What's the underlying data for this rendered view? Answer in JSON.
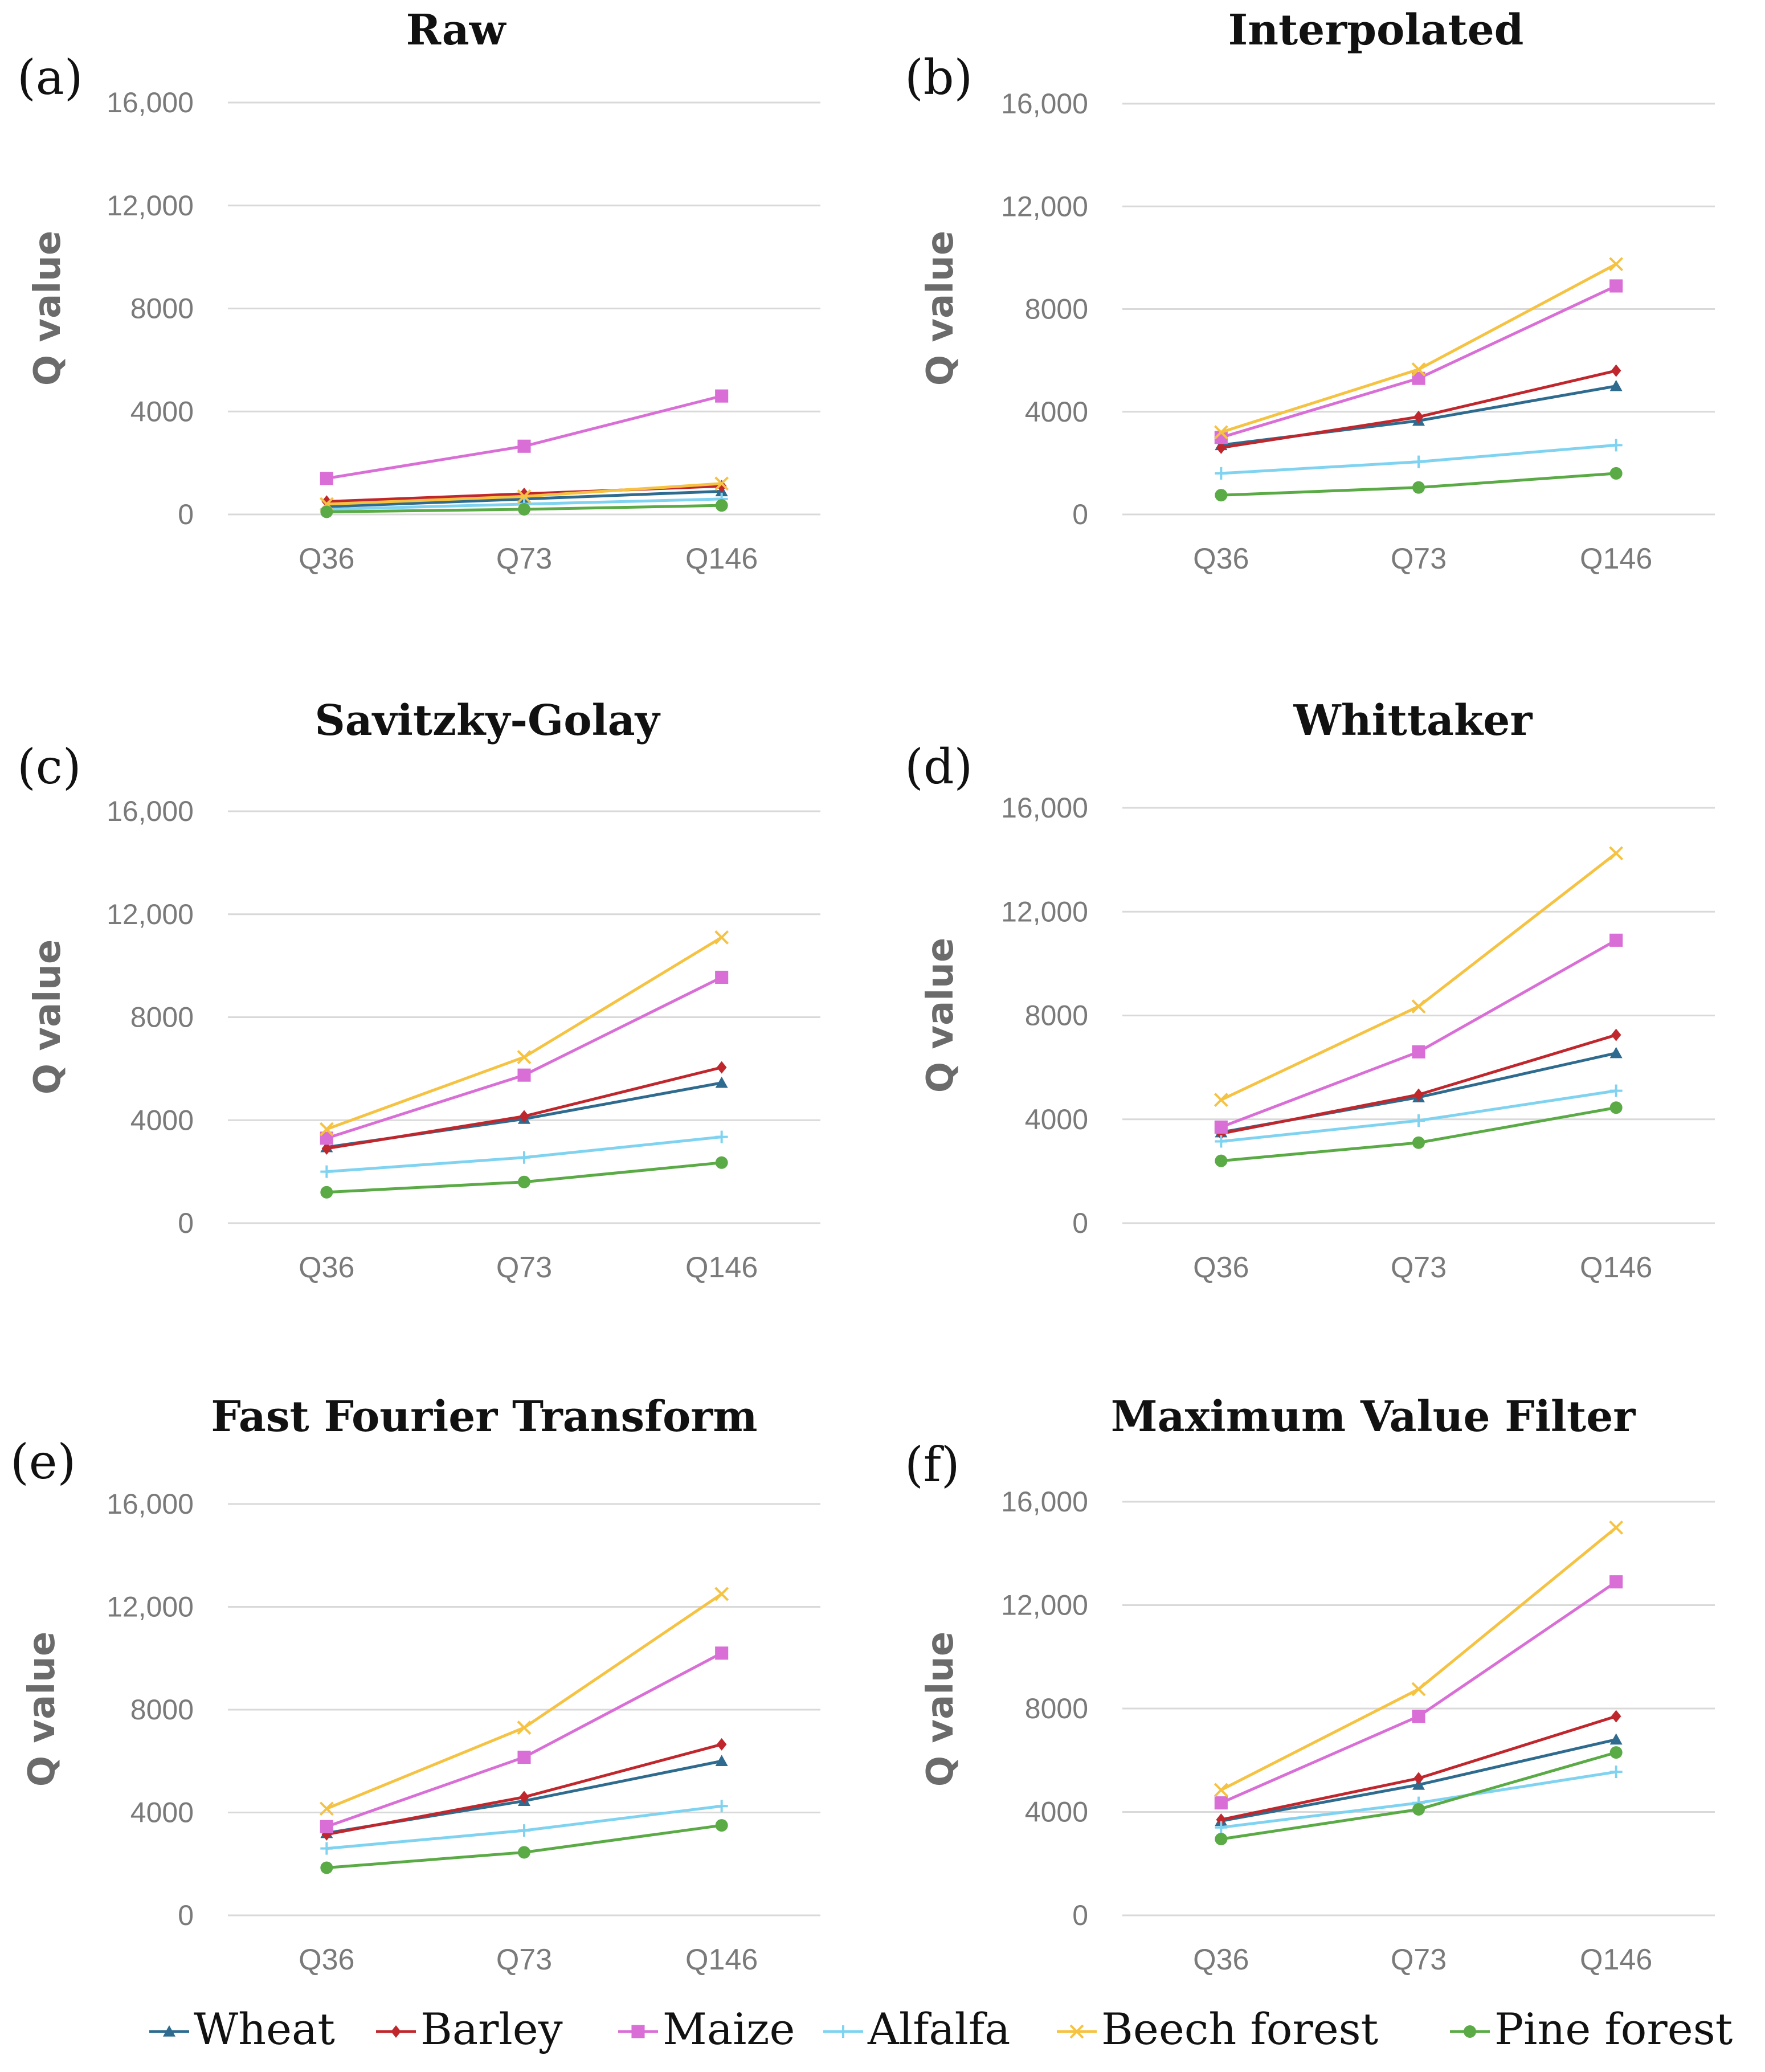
{
  "chart_data": [
    {
      "id": "a",
      "letter": "(a)",
      "type": "line",
      "title": "Raw",
      "categories": [
        "Q36",
        "Q73",
        "Q146"
      ],
      "ylabel": "Q value",
      "ylim": [
        0,
        16000
      ],
      "yticks": [
        "0",
        "4000",
        "8000",
        "12,000",
        "16,000"
      ],
      "grid": true,
      "series": [
        {
          "name": "Wheat",
          "values": [
            300,
            600,
            900
          ]
        },
        {
          "name": "Barley",
          "values": [
            500,
            800,
            1100
          ]
        },
        {
          "name": "Maize",
          "values": [
            1400,
            2650,
            4600
          ]
        },
        {
          "name": "Alfalfa",
          "values": [
            200,
            400,
            600
          ]
        },
        {
          "name": "Beech forest",
          "values": [
            400,
            700,
            1200
          ]
        },
        {
          "name": "Pine forest",
          "values": [
            100,
            200,
            350
          ]
        }
      ]
    },
    {
      "id": "b",
      "letter": "(b)",
      "type": "line",
      "title": "Interpolated",
      "categories": [
        "Q36",
        "Q73",
        "Q146"
      ],
      "ylabel": "Q value",
      "ylim": [
        0,
        16000
      ],
      "yticks": [
        "0",
        "4000",
        "8000",
        "12,000",
        "16,000"
      ],
      "grid": true,
      "series": [
        {
          "name": "Wheat",
          "values": [
            2700,
            3650,
            5000
          ]
        },
        {
          "name": "Barley",
          "values": [
            2600,
            3800,
            5600
          ]
        },
        {
          "name": "Maize",
          "values": [
            3000,
            5300,
            8900
          ]
        },
        {
          "name": "Alfalfa",
          "values": [
            1600,
            2050,
            2700
          ]
        },
        {
          "name": "Beech forest",
          "values": [
            3200,
            5650,
            9750
          ]
        },
        {
          "name": "Pine forest",
          "values": [
            750,
            1050,
            1600
          ]
        }
      ]
    },
    {
      "id": "c",
      "letter": "(c)",
      "type": "line",
      "title": "Savitzky-Golay",
      "categories": [
        "Q36",
        "Q73",
        "Q146"
      ],
      "ylabel": "Q value",
      "ylim": [
        0,
        16000
      ],
      "yticks": [
        "0",
        "4000",
        "8000",
        "12,000",
        "16,000"
      ],
      "grid": true,
      "series": [
        {
          "name": "Wheat",
          "values": [
            2950,
            4050,
            5450
          ]
        },
        {
          "name": "Barley",
          "values": [
            2900,
            4150,
            6050
          ]
        },
        {
          "name": "Maize",
          "values": [
            3300,
            5750,
            9550
          ]
        },
        {
          "name": "Alfalfa",
          "values": [
            2000,
            2550,
            3350
          ]
        },
        {
          "name": "Beech forest",
          "values": [
            3650,
            6450,
            11100
          ]
        },
        {
          "name": "Pine forest",
          "values": [
            1200,
            1600,
            2350
          ]
        }
      ]
    },
    {
      "id": "d",
      "letter": "(d)",
      "type": "line",
      "title": "Whittaker",
      "categories": [
        "Q36",
        "Q73",
        "Q146"
      ],
      "ylabel": "Q value",
      "ylim": [
        0,
        16000
      ],
      "yticks": [
        "0",
        "4000",
        "8000",
        "12,000",
        "16,000"
      ],
      "grid": true,
      "series": [
        {
          "name": "Wheat",
          "values": [
            3500,
            4850,
            6550
          ]
        },
        {
          "name": "Barley",
          "values": [
            3450,
            4950,
            7250
          ]
        },
        {
          "name": "Maize",
          "values": [
            3700,
            6600,
            10900
          ]
        },
        {
          "name": "Alfalfa",
          "values": [
            3150,
            3950,
            5100
          ]
        },
        {
          "name": "Beech forest",
          "values": [
            4750,
            8350,
            14250
          ]
        },
        {
          "name": "Pine forest",
          "values": [
            2400,
            3100,
            4450
          ]
        }
      ]
    },
    {
      "id": "e",
      "letter": "(e)",
      "type": "line",
      "title": "Fast Fourier Transform",
      "categories": [
        "Q36",
        "Q73",
        "Q146"
      ],
      "ylabel": "Q value",
      "ylim": [
        0,
        16000
      ],
      "yticks": [
        "0",
        "4000",
        "8000",
        "12,000",
        "16,000"
      ],
      "grid": true,
      "series": [
        {
          "name": "Wheat",
          "values": [
            3200,
            4450,
            6000
          ]
        },
        {
          "name": "Barley",
          "values": [
            3150,
            4600,
            6650
          ]
        },
        {
          "name": "Maize",
          "values": [
            3450,
            6150,
            10200
          ]
        },
        {
          "name": "Alfalfa",
          "values": [
            2600,
            3300,
            4250
          ]
        },
        {
          "name": "Beech forest",
          "values": [
            4150,
            7300,
            12500
          ]
        },
        {
          "name": "Pine forest",
          "values": [
            1850,
            2450,
            3500
          ]
        }
      ]
    },
    {
      "id": "f",
      "letter": "(f)",
      "type": "line",
      "title": "Maximum Value Filter",
      "categories": [
        "Q36",
        "Q73",
        "Q146"
      ],
      "ylabel": "Q value",
      "ylim": [
        0,
        16000
      ],
      "yticks": [
        "0",
        "4000",
        "8000",
        "12,000",
        "16,000"
      ],
      "grid": true,
      "series": [
        {
          "name": "Wheat",
          "values": [
            3650,
            5050,
            6800
          ]
        },
        {
          "name": "Barley",
          "values": [
            3700,
            5300,
            7700
          ]
        },
        {
          "name": "Maize",
          "values": [
            4350,
            7700,
            12900
          ]
        },
        {
          "name": "Alfalfa",
          "values": [
            3400,
            4350,
            5550
          ]
        },
        {
          "name": "Beech forest",
          "values": [
            4850,
            8750,
            15000
          ]
        },
        {
          "name": "Pine forest",
          "values": [
            2950,
            4100,
            6300
          ]
        }
      ]
    }
  ],
  "legend": [
    {
      "name": "Wheat",
      "marker": "triangle",
      "color": "#2e6b8f"
    },
    {
      "name": "Barley",
      "marker": "diamond",
      "color": "#c0272d"
    },
    {
      "name": "Maize",
      "marker": "square",
      "color": "#d96fd6"
    },
    {
      "name": "Alfalfa",
      "marker": "plus",
      "color": "#7fd3f0"
    },
    {
      "name": "Beech forest",
      "marker": "cross",
      "color": "#f5c242"
    },
    {
      "name": "Pine forest",
      "marker": "circle",
      "color": "#5aaa45"
    }
  ]
}
